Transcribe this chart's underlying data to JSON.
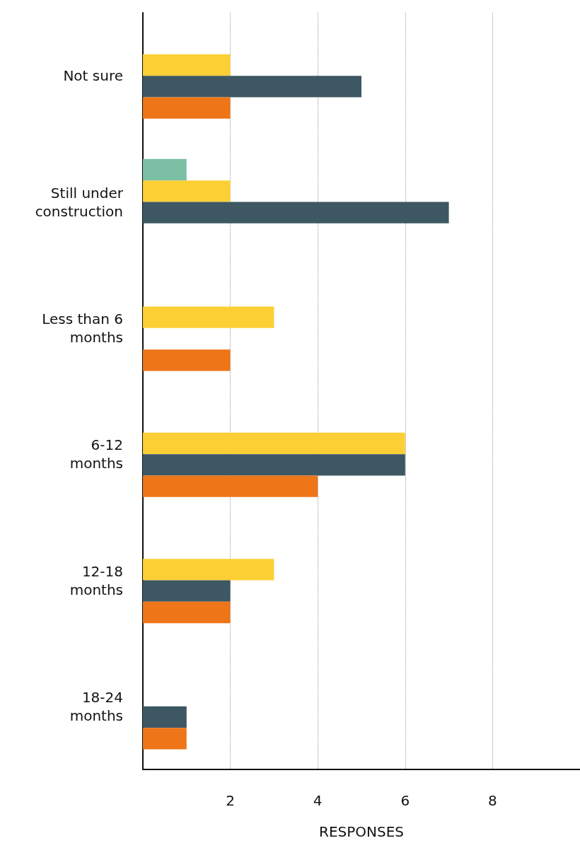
{
  "chart_data": {
    "type": "bar",
    "orientation": "horizontal",
    "xlabel": "RESPONSES",
    "categories": [
      "Not sure",
      "Still under\nconstruction",
      "Less than 6\nmonths",
      "6-12\nmonths",
      "12-18\nmonths",
      "18-24\nmonths"
    ],
    "series": [
      {
        "color": "#7bbfa5",
        "values": [
          null,
          1,
          null,
          null,
          null,
          null
        ]
      },
      {
        "color": "#fcd034",
        "values": [
          2,
          2,
          3,
          6,
          3,
          null
        ]
      },
      {
        "color": "#3d5763",
        "values": [
          5,
          7,
          null,
          6,
          2,
          1
        ]
      },
      {
        "color": "#ee7518",
        "values": [
          2,
          null,
          2,
          4,
          2,
          1
        ]
      }
    ],
    "xlim": [
      0,
      10
    ],
    "xticks": [
      2,
      4,
      6,
      8
    ],
    "grid": "x"
  }
}
